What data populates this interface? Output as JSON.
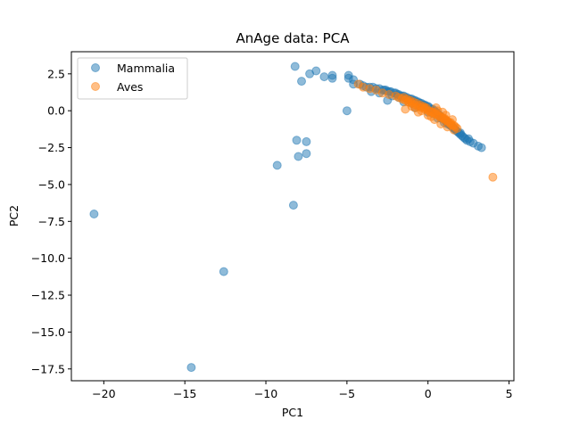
{
  "chart_data": {
    "type": "scatter",
    "title": "AnAge data: PCA",
    "xlabel": "PC1",
    "ylabel": "PC2",
    "xlim": [
      -22.0,
      5.3
    ],
    "ylim": [
      -18.3,
      4.0
    ],
    "xticks": [
      -20,
      -15,
      -10,
      -5,
      0,
      5
    ],
    "yticks": [
      2.5,
      0.0,
      -2.5,
      -5.0,
      -7.5,
      -10.0,
      -12.5,
      -15.0,
      -17.5
    ],
    "xtick_labels": [
      "−20",
      "−15",
      "−10",
      "−5",
      "0",
      "5"
    ],
    "ytick_labels": [
      "2.5",
      "0.0",
      "−2.5",
      "−5.0",
      "−7.5",
      "−10.0",
      "−12.5",
      "−15.0",
      "−17.5"
    ],
    "grid": false,
    "legend_position": "top-left",
    "series": [
      {
        "name": "Mammalia",
        "color": "#1f77b4",
        "alpha": 0.5,
        "x": [
          -20.6,
          -14.6,
          -12.6,
          -9.3,
          -8.3,
          -8.2,
          -8.1,
          -8.0,
          -7.8,
          -7.5,
          -7.5,
          -7.3,
          -6.9,
          -6.4,
          -5.9,
          -5.9,
          -5.0,
          -4.9,
          -4.9,
          -4.6,
          -4.6,
          -4.2,
          -4.0,
          -3.8,
          -3.6,
          -3.4,
          -3.2,
          -3.0,
          -2.8,
          -2.7,
          -2.6,
          -2.5,
          -2.4,
          -2.3,
          -2.1,
          -2.0,
          -1.9,
          -1.8,
          -1.7,
          -1.6,
          -1.5,
          -1.4,
          -1.3,
          -1.2,
          -1.1,
          -1.0,
          -0.9,
          -0.8,
          -0.7,
          -0.6,
          -0.5,
          -0.4,
          -0.3,
          -0.2,
          -0.1,
          0.0,
          0.1,
          0.2,
          0.3,
          0.4,
          0.5,
          0.6,
          0.7,
          0.8,
          0.9,
          1.0,
          1.1,
          1.2,
          1.3,
          1.4,
          1.5,
          1.6,
          1.7,
          1.8,
          1.9,
          2.0,
          2.1,
          2.2,
          2.3,
          2.4,
          2.6,
          2.8,
          3.1,
          3.3,
          -3.0,
          -2.5,
          -1.8,
          -1.0,
          -0.5,
          0.3,
          0.8,
          1.2,
          1.6,
          2.0,
          2.5,
          -3.5,
          -2.2,
          -1.5,
          -0.8,
          0.0,
          0.6,
          1.0,
          1.4
        ],
        "y": [
          -7.0,
          -17.4,
          -10.9,
          -3.7,
          -6.4,
          3.0,
          -2.0,
          -3.1,
          2.0,
          -2.1,
          -2.9,
          2.5,
          2.7,
          2.3,
          2.4,
          2.2,
          0.0,
          2.4,
          2.2,
          2.1,
          1.8,
          1.8,
          1.7,
          1.6,
          1.6,
          1.6,
          1.5,
          1.5,
          1.4,
          1.4,
          1.4,
          1.3,
          1.3,
          1.3,
          1.2,
          1.2,
          1.1,
          1.1,
          1.0,
          1.0,
          1.0,
          0.9,
          0.9,
          0.8,
          0.8,
          0.8,
          0.7,
          0.7,
          0.6,
          0.6,
          0.5,
          0.5,
          0.4,
          0.4,
          0.3,
          0.3,
          0.2,
          0.1,
          0.1,
          0.0,
          -0.1,
          -0.2,
          -0.3,
          -0.4,
          -0.5,
          -0.6,
          -0.7,
          -0.8,
          -0.9,
          -1.0,
          -1.1,
          -1.2,
          -1.3,
          -1.4,
          -1.5,
          -1.6,
          -1.7,
          -1.8,
          -1.9,
          -2.0,
          -2.1,
          -2.2,
          -2.4,
          -2.5,
          1.2,
          0.7,
          0.9,
          0.5,
          0.3,
          -0.2,
          -0.5,
          -0.9,
          -1.2,
          -1.5,
          -1.9,
          1.3,
          1.0,
          0.6,
          0.2,
          -0.1,
          -0.5,
          -0.8,
          -1.0
        ]
      },
      {
        "name": "Aves",
        "color": "#ff7f0e",
        "alpha": 0.5,
        "x": [
          4.0,
          -4.3,
          -4.0,
          -3.6,
          -3.2,
          -2.8,
          -2.4,
          -2.0,
          -1.8,
          -1.6,
          -1.5,
          -1.4,
          -1.3,
          -1.2,
          -1.1,
          -1.0,
          -0.9,
          -0.8,
          -0.7,
          -0.6,
          -0.5,
          -0.4,
          -0.3,
          -0.2,
          -0.1,
          0.0,
          0.1,
          0.2,
          0.3,
          0.4,
          0.5,
          0.6,
          0.7,
          0.8,
          0.9,
          1.0,
          1.1,
          1.2,
          1.3,
          1.4,
          1.5,
          1.6,
          1.7,
          1.8,
          -1.4,
          -1.0,
          -0.6,
          -0.2,
          0.2,
          0.6,
          1.0,
          1.4,
          -1.2,
          -0.8,
          -0.4,
          0.0,
          0.4,
          0.8,
          1.2,
          1.6,
          0.5,
          0.9,
          1.1,
          1.5
        ],
        "y": [
          -4.5,
          1.8,
          1.6,
          1.5,
          1.4,
          1.2,
          1.1,
          1.0,
          0.9,
          0.8,
          0.9,
          0.7,
          0.8,
          0.6,
          0.7,
          0.5,
          0.6,
          0.4,
          0.5,
          0.3,
          0.4,
          0.2,
          0.3,
          0.1,
          0.2,
          0.0,
          0.0,
          -0.1,
          -0.1,
          -0.2,
          -0.2,
          -0.3,
          -0.4,
          -0.4,
          -0.5,
          -0.6,
          -0.6,
          -0.7,
          -0.8,
          -0.9,
          -1.0,
          -1.0,
          -1.1,
          -1.2,
          0.1,
          0.3,
          -0.1,
          0.2,
          -0.4,
          0.0,
          -0.5,
          -0.8,
          0.6,
          0.2,
          0.0,
          -0.3,
          -0.6,
          -0.9,
          -1.1,
          -1.3,
          0.2,
          -0.1,
          -0.3,
          -0.6
        ]
      }
    ]
  }
}
